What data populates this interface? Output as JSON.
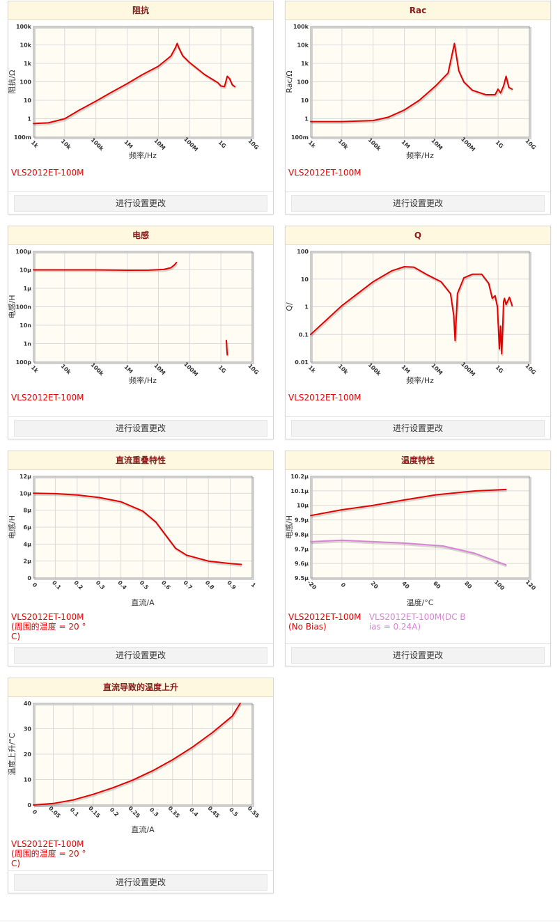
{
  "button_label": "进行设置更改",
  "charts": [
    {
      "id": "impedance",
      "title": "阻抗",
      "ylabel": "阻抗/Ω",
      "xlabel": "频率/Hz",
      "type": "line",
      "xscale": "log",
      "yscale": "log",
      "xlim": [
        1000,
        10000000000
      ],
      "ylim": [
        0.1,
        100000
      ],
      "xticks": [
        1000,
        10000,
        100000,
        1000000,
        10000000,
        100000000,
        1000000000,
        10000000000
      ],
      "xtick_labels": [
        "1k",
        "10k",
        "100k",
        "1M",
        "10M",
        "100M",
        "1G",
        "10G"
      ],
      "yticks": [
        0.1,
        1,
        10,
        100,
        1000,
        10000,
        100000
      ],
      "ytick_labels": [
        "100m",
        "1",
        "10",
        "100",
        "1k",
        "10k",
        "100k"
      ],
      "grid": true,
      "series": [
        {
          "name": "VLS2012ET-100M",
          "color": "#e30000",
          "x": [
            1000,
            3000,
            10000,
            30000,
            100000,
            300000,
            1000000,
            3000000,
            10000000,
            25000000,
            35000000,
            40000000,
            45000000,
            60000000,
            100000000,
            300000000,
            600000000,
            800000000,
            1000000000,
            1300000000,
            1600000000,
            1900000000,
            2300000000,
            2800000000
          ],
          "y": [
            0.55,
            0.6,
            1.0,
            3.0,
            9.0,
            26,
            80,
            240,
            700,
            2500,
            7000,
            12000,
            7000,
            2600,
            1100,
            250,
            120,
            90,
            60,
            55,
            200,
            150,
            70,
            55
          ]
        }
      ]
    },
    {
      "id": "rac",
      "title": "Rac",
      "ylabel": "Rac/Ω",
      "xlabel": "频率/Hz",
      "type": "line",
      "xscale": "log",
      "yscale": "log",
      "xlim": [
        1000,
        10000000000
      ],
      "ylim": [
        0.1,
        100000
      ],
      "xticks": [
        1000,
        10000,
        100000,
        1000000,
        10000000,
        100000000,
        1000000000,
        10000000000
      ],
      "xtick_labels": [
        "1k",
        "10k",
        "100k",
        "1M",
        "10M",
        "100M",
        "1G",
        "10G"
      ],
      "yticks": [
        0.1,
        1,
        10,
        100,
        1000,
        10000,
        100000
      ],
      "ytick_labels": [
        "100m",
        "1",
        "10",
        "100",
        "1k",
        "10k",
        "100k"
      ],
      "grid": true,
      "series": [
        {
          "name": "VLS2012ET-100M",
          "color": "#e30000",
          "x": [
            1000,
            10000,
            100000,
            300000,
            1000000,
            3000000,
            10000000,
            25000000,
            40000000,
            55000000,
            80000000,
            150000000,
            400000000,
            800000000,
            1000000000,
            1200000000,
            1500000000,
            1800000000,
            2200000000,
            2800000000
          ],
          "y": [
            0.7,
            0.7,
            0.8,
            1.2,
            3,
            10,
            60,
            300,
            12000,
            400,
            100,
            35,
            20,
            20,
            40,
            25,
            60,
            200,
            50,
            40
          ]
        }
      ]
    },
    {
      "id": "inductance",
      "title": "电感",
      "ylabel": "电感/H",
      "xlabel": "频率/Hz",
      "type": "line",
      "xscale": "log",
      "yscale": "log",
      "xlim": [
        1000,
        10000000000
      ],
      "ylim": [
        1e-10,
        0.0001
      ],
      "xticks": [
        1000,
        10000,
        100000,
        1000000,
        10000000,
        100000000,
        1000000000,
        10000000000
      ],
      "xtick_labels": [
        "1k",
        "10k",
        "100k",
        "1M",
        "10M",
        "100M",
        "1G",
        "10G"
      ],
      "yticks": [
        1e-10,
        1e-09,
        1e-08,
        1e-07,
        1e-06,
        1e-05,
        0.0001
      ],
      "ytick_labels": [
        "100p",
        "1n",
        "10n",
        "100n",
        "1μ",
        "10μ",
        "100μ"
      ],
      "grid": true,
      "series": [
        {
          "name": "VLS2012ET-100M",
          "color": "#e30000",
          "x": [
            1000,
            10000,
            100000,
            1000000,
            5000000,
            15000000,
            25000000,
            32000000,
            38000000
          ],
          "y": [
            1e-05,
            1e-05,
            1e-05,
            9.6e-06,
            9.7e-06,
            1.05e-05,
            1.3e-05,
            1.8e-05,
            2.5e-05
          ]
        },
        {
          "name": "",
          "color": "#e30000",
          "x": [
            1500000000,
            1550000000,
            1600000000
          ],
          "y": [
            1.5e-09,
            5e-10,
            2.5e-10
          ]
        }
      ]
    },
    {
      "id": "q",
      "title": "Q",
      "ylabel": "Q/",
      "xlabel": "频率/Hz",
      "type": "line",
      "xscale": "log",
      "yscale": "log",
      "xlim": [
        1000,
        10000000000
      ],
      "ylim": [
        0.01,
        100
      ],
      "xticks": [
        1000,
        10000,
        100000,
        1000000,
        10000000,
        100000000,
        1000000000,
        10000000000
      ],
      "xtick_labels": [
        "1k",
        "10k",
        "100k",
        "1M",
        "10M",
        "100M",
        "1G",
        "10G"
      ],
      "yticks": [
        0.01,
        0.1,
        1,
        10,
        100
      ],
      "ytick_labels": [
        "0.01",
        "0.1",
        "1",
        "10",
        "100"
      ],
      "grid": true,
      "series": [
        {
          "name": "VLS2012ET-100M",
          "color": "#e30000",
          "x": [
            1000,
            10000,
            100000,
            400000,
            1000000,
            2000000,
            5000000,
            15000000,
            30000000,
            38000000,
            42000000,
            50000000,
            80000000,
            150000000,
            300000000,
            500000000,
            650000000,
            800000000,
            950000000,
            1100000000,
            1200000000,
            1300000000,
            1400000000,
            1500000000,
            1600000000,
            1800000000,
            2300000000,
            2800000000
          ],
          "y": [
            0.1,
            1.1,
            8,
            20,
            28,
            27,
            15,
            8,
            3,
            0.5,
            0.06,
            3,
            11,
            15,
            15,
            7,
            2,
            2.5,
            1,
            0.03,
            0.2,
            0.02,
            0.15,
            1.5,
            2,
            1.2,
            2.2,
            1.1
          ]
        }
      ]
    },
    {
      "id": "dc_bias",
      "title": "直流重叠特性",
      "ylabel": "电感/H",
      "xlabel": "直流/A",
      "type": "line",
      "xscale": "linear",
      "yscale": "linear",
      "xlim": [
        0,
        1
      ],
      "ylim": [
        0,
        1.2e-05
      ],
      "xticks": [
        0,
        0.1,
        0.2,
        0.3,
        0.4,
        0.5,
        0.6,
        0.7,
        0.8,
        0.9,
        1
      ],
      "xtick_labels": [
        "0",
        "0.1",
        "0.2",
        "0.3",
        "0.4",
        "0.5",
        "0.6",
        "0.7",
        "0.8",
        "0.9",
        "1"
      ],
      "yticks": [
        0,
        2e-06,
        4e-06,
        6e-06,
        8e-06,
        1e-05,
        1.2e-05
      ],
      "ytick_labels": [
        "0",
        "2μ",
        "4μ",
        "6μ",
        "8μ",
        "10μ",
        "12μ"
      ],
      "grid": true,
      "series": [
        {
          "name": "VLS2012ET-100M(周围的温度 = 20 °C)",
          "color": "#e30000",
          "x": [
            0,
            0.1,
            0.2,
            0.3,
            0.4,
            0.5,
            0.56,
            0.65,
            0.7,
            0.8,
            0.9,
            0.95
          ],
          "y": [
            1e-05,
            9.95e-06,
            9.8e-06,
            9.5e-06,
            9e-06,
            7.9e-06,
            6.6e-06,
            3.5e-06,
            2.7e-06,
            2e-06,
            1.7e-06,
            1.6e-06
          ]
        }
      ]
    },
    {
      "id": "temperature",
      "title": "温度特性",
      "ylabel": "电感/H",
      "xlabel": "温度/°C",
      "type": "line",
      "xscale": "linear",
      "yscale": "linear",
      "xlim": [
        -20,
        120
      ],
      "ylim": [
        9.5e-06,
        1.02e-05
      ],
      "xticks": [
        -20,
        0,
        20,
        40,
        60,
        80,
        100,
        120
      ],
      "xtick_labels": [
        "-20",
        "0",
        "20",
        "40",
        "60",
        "80",
        "100",
        "120"
      ],
      "yticks": [
        9.5e-06,
        9.6e-06,
        9.7e-06,
        9.8e-06,
        9.9e-06,
        1e-05,
        1.01e-05,
        1.02e-05
      ],
      "ytick_labels": [
        "9.5μ",
        "9.6μ",
        "9.7μ",
        "9.8μ",
        "9.9μ",
        "10μ",
        "10.1μ",
        "10.2μ"
      ],
      "grid": true,
      "series": [
        {
          "name": "VLS2012ET-100M(No Bias)",
          "color": "#e30000",
          "x": [
            -20,
            0,
            20,
            40,
            60,
            85,
            105
          ],
          "y": [
            9.93e-06,
            9.97e-06,
            1e-05,
            1.00375e-05,
            1.00725e-05,
            1.00995e-05,
            1.01095e-05
          ]
        },
        {
          "name": "VLS2012ET-100M(DC Bias = 0.24A)",
          "color": "#d783d6",
          "x": [
            -20,
            0,
            20,
            40,
            65,
            85,
            105
          ],
          "y": [
            9.75e-06,
            9.76e-06,
            9.75e-06,
            9.74e-06,
            9.72e-06,
            9.67e-06,
            9.59e-06
          ]
        }
      ]
    },
    {
      "id": "temp_rise",
      "title": "直流导致的温度上升",
      "ylabel": "温度上升/°C",
      "xlabel": "直流/A",
      "type": "line",
      "xscale": "linear",
      "yscale": "linear",
      "xlim": [
        0,
        0.55
      ],
      "ylim": [
        0,
        40
      ],
      "xticks": [
        0,
        0.05,
        0.1,
        0.15,
        0.2,
        0.25,
        0.3,
        0.35,
        0.4,
        0.45,
        0.5,
        0.55
      ],
      "xtick_labels": [
        "0",
        "0.05",
        "0.1",
        "0.15",
        "0.2",
        "0.25",
        "0.3",
        "0.35",
        "0.4",
        "0.45",
        "0.5",
        "0.55"
      ],
      "yticks": [
        0,
        10,
        20,
        30,
        40
      ],
      "ytick_labels": [
        "0",
        "10",
        "20",
        "30",
        "40"
      ],
      "grid": true,
      "series": [
        {
          "name": "VLS2012ET-100M(周围的温度 = 20 °C)",
          "color": "#e30000",
          "x": [
            0,
            0.05,
            0.1,
            0.15,
            0.2,
            0.25,
            0.3,
            0.35,
            0.4,
            0.45,
            0.5,
            0.52
          ],
          "y": [
            0,
            0.6,
            2.0,
            4.2,
            6.8,
            9.8,
            13.5,
            17.8,
            22.8,
            28.5,
            35,
            40
          ]
        }
      ]
    }
  ]
}
